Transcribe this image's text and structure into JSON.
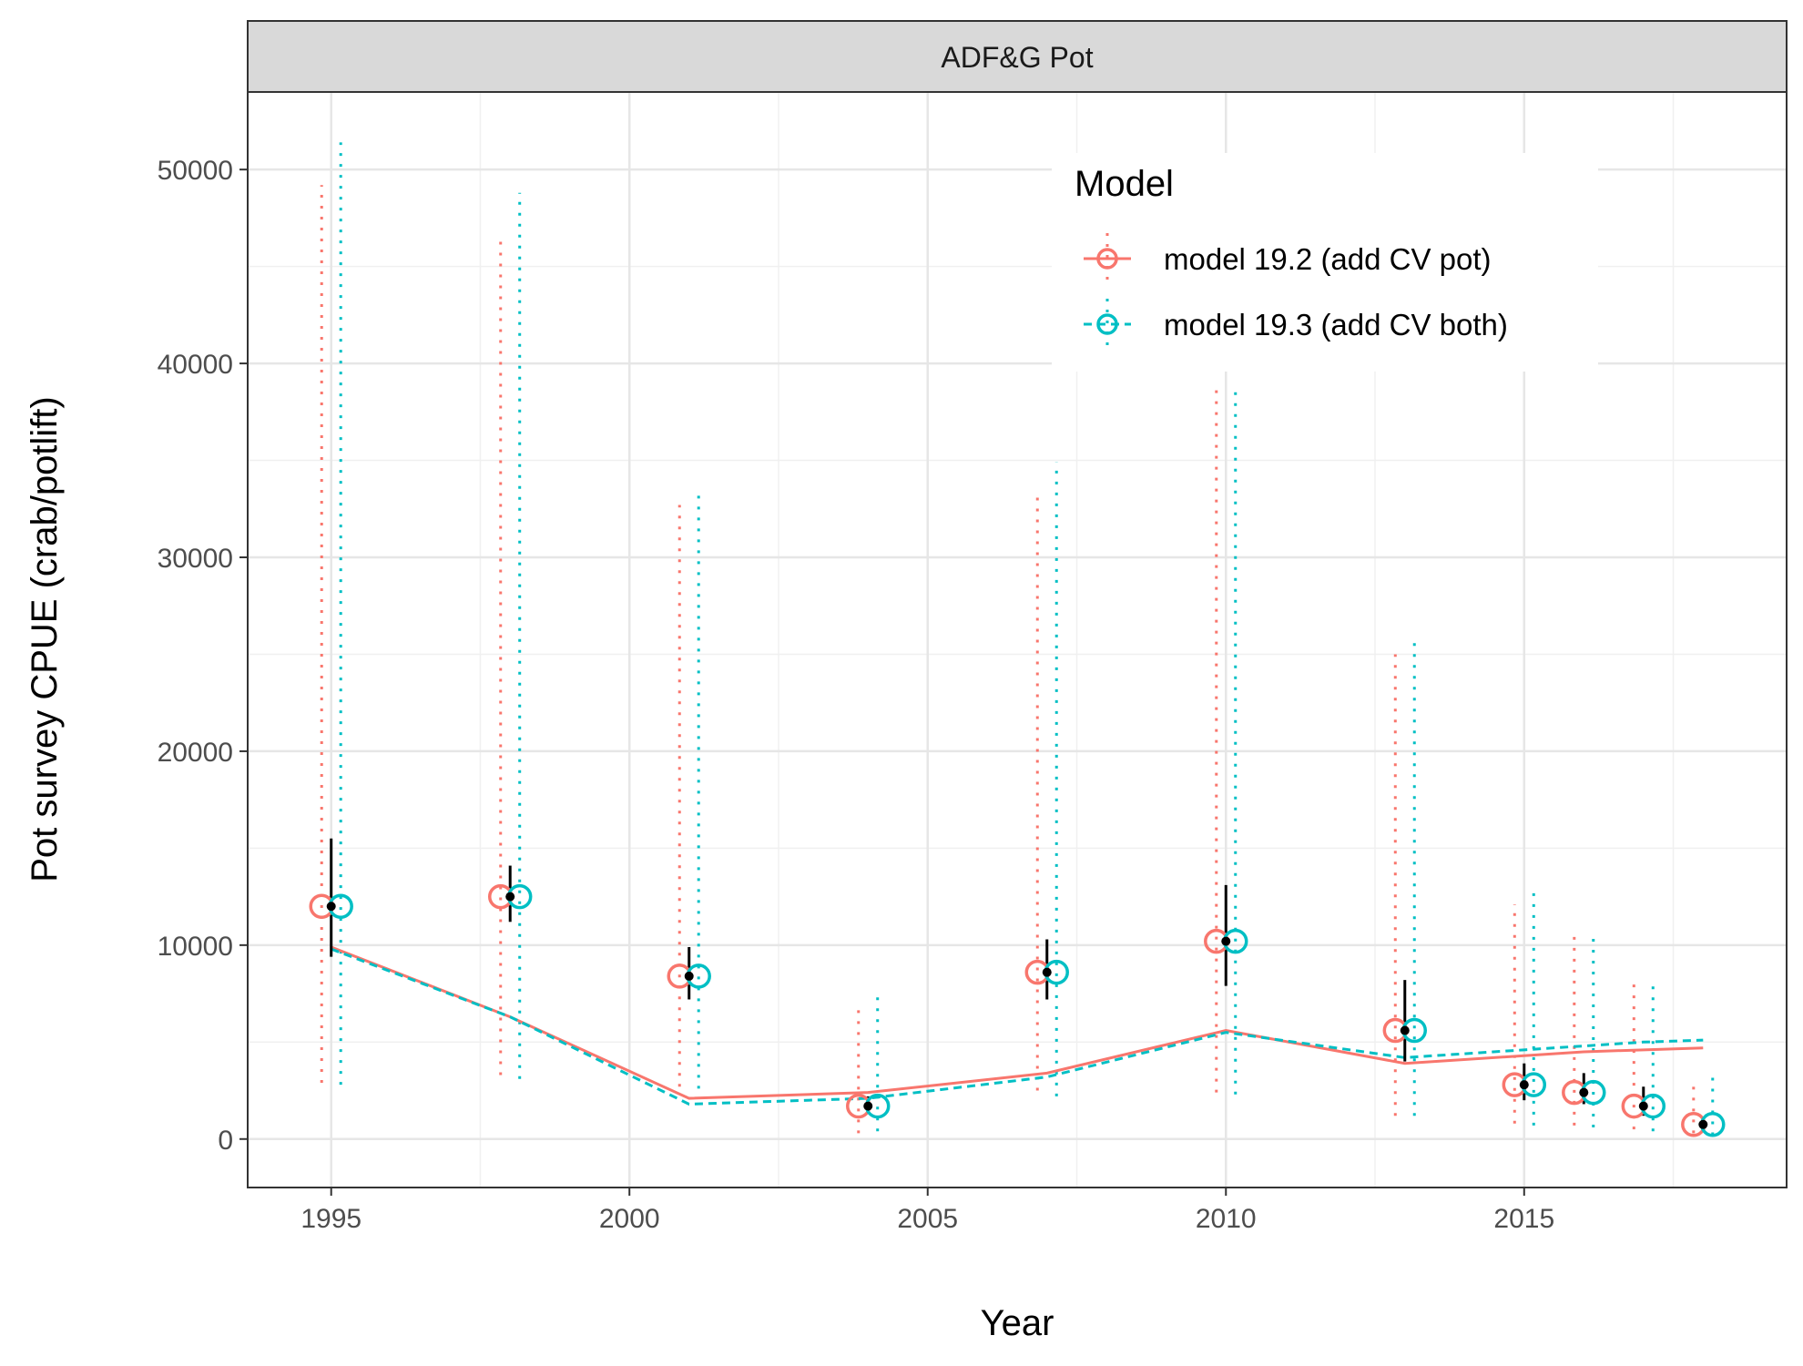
{
  "chart_data": {
    "type": "line",
    "panel_title": "ADF&G Pot",
    "xlabel": "Year",
    "ylabel": "Pot survey CPUE (crab/potlift)",
    "xlim": [
      1993.6,
      2019.4
    ],
    "ylim": [
      -2500,
      54000
    ],
    "x_ticks": [
      1995,
      2000,
      2005,
      2010,
      2015
    ],
    "y_ticks": [
      0,
      10000,
      20000,
      30000,
      40000,
      50000
    ],
    "grid": true,
    "legend": {
      "title": "Model",
      "position": "top-right",
      "entries": [
        "model 19.2 (add CV pot)",
        "model 19.3 (add CV both)"
      ]
    },
    "colors": {
      "model_19_2": "#F8766D",
      "model_19_3": "#00BFC4",
      "observed": "#000000"
    },
    "observed": {
      "x": [
        1995,
        1998,
        2001,
        2004,
        2007,
        2010,
        2013,
        2015,
        2016,
        2017,
        2018
      ],
      "y": [
        12000,
        12500,
        8400,
        1700,
        8600,
        10200,
        5600,
        2800,
        2400,
        1700,
        750
      ],
      "lower": [
        9400,
        11200,
        7200,
        1300,
        7200,
        7900,
        4000,
        2000,
        1800,
        1200,
        500
      ],
      "upper": [
        15500,
        14100,
        9900,
        2200,
        10300,
        13100,
        8200,
        3900,
        3400,
        2700,
        1100
      ]
    },
    "series": [
      {
        "name": "model 19.2 (add CV pot)",
        "x": [
          1995,
          1998,
          2001,
          2004,
          2007,
          2010,
          2013,
          2015,
          2016,
          2017,
          2018
        ],
        "predicted": [
          9900,
          6300,
          2100,
          2400,
          3400,
          5600,
          3900,
          4300,
          4500,
          4600,
          4700
        ],
        "obs_y": [
          12000,
          12500,
          8400,
          1700,
          8600,
          10200,
          5600,
          2800,
          2400,
          1700,
          750
        ],
        "ci_lower": [
          2900,
          3300,
          2700,
          300,
          2500,
          2400,
          1200,
          800,
          700,
          500,
          300
        ],
        "ci_upper": [
          49200,
          46600,
          32700,
          6700,
          33400,
          38900,
          25000,
          12100,
          10500,
          8000,
          3000
        ]
      },
      {
        "name": "model 19.3 (add CV both)",
        "x": [
          1995,
          1998,
          2001,
          2004,
          2007,
          2010,
          2013,
          2015,
          2016,
          2017,
          2018
        ],
        "predicted": [
          9800,
          6300,
          1800,
          2100,
          3200,
          5500,
          4200,
          4600,
          4800,
          5000,
          5100
        ],
        "obs_y": [
          12000,
          12500,
          8400,
          1700,
          8600,
          10200,
          5600,
          2800,
          2400,
          1700,
          750
        ],
        "ci_lower": [
          2800,
          3100,
          2600,
          400,
          2200,
          2300,
          1200,
          700,
          600,
          400,
          200
        ],
        "ci_upper": [
          51400,
          48800,
          33400,
          7400,
          34900,
          38900,
          25700,
          12700,
          10500,
          8000,
          3200
        ]
      }
    ]
  }
}
